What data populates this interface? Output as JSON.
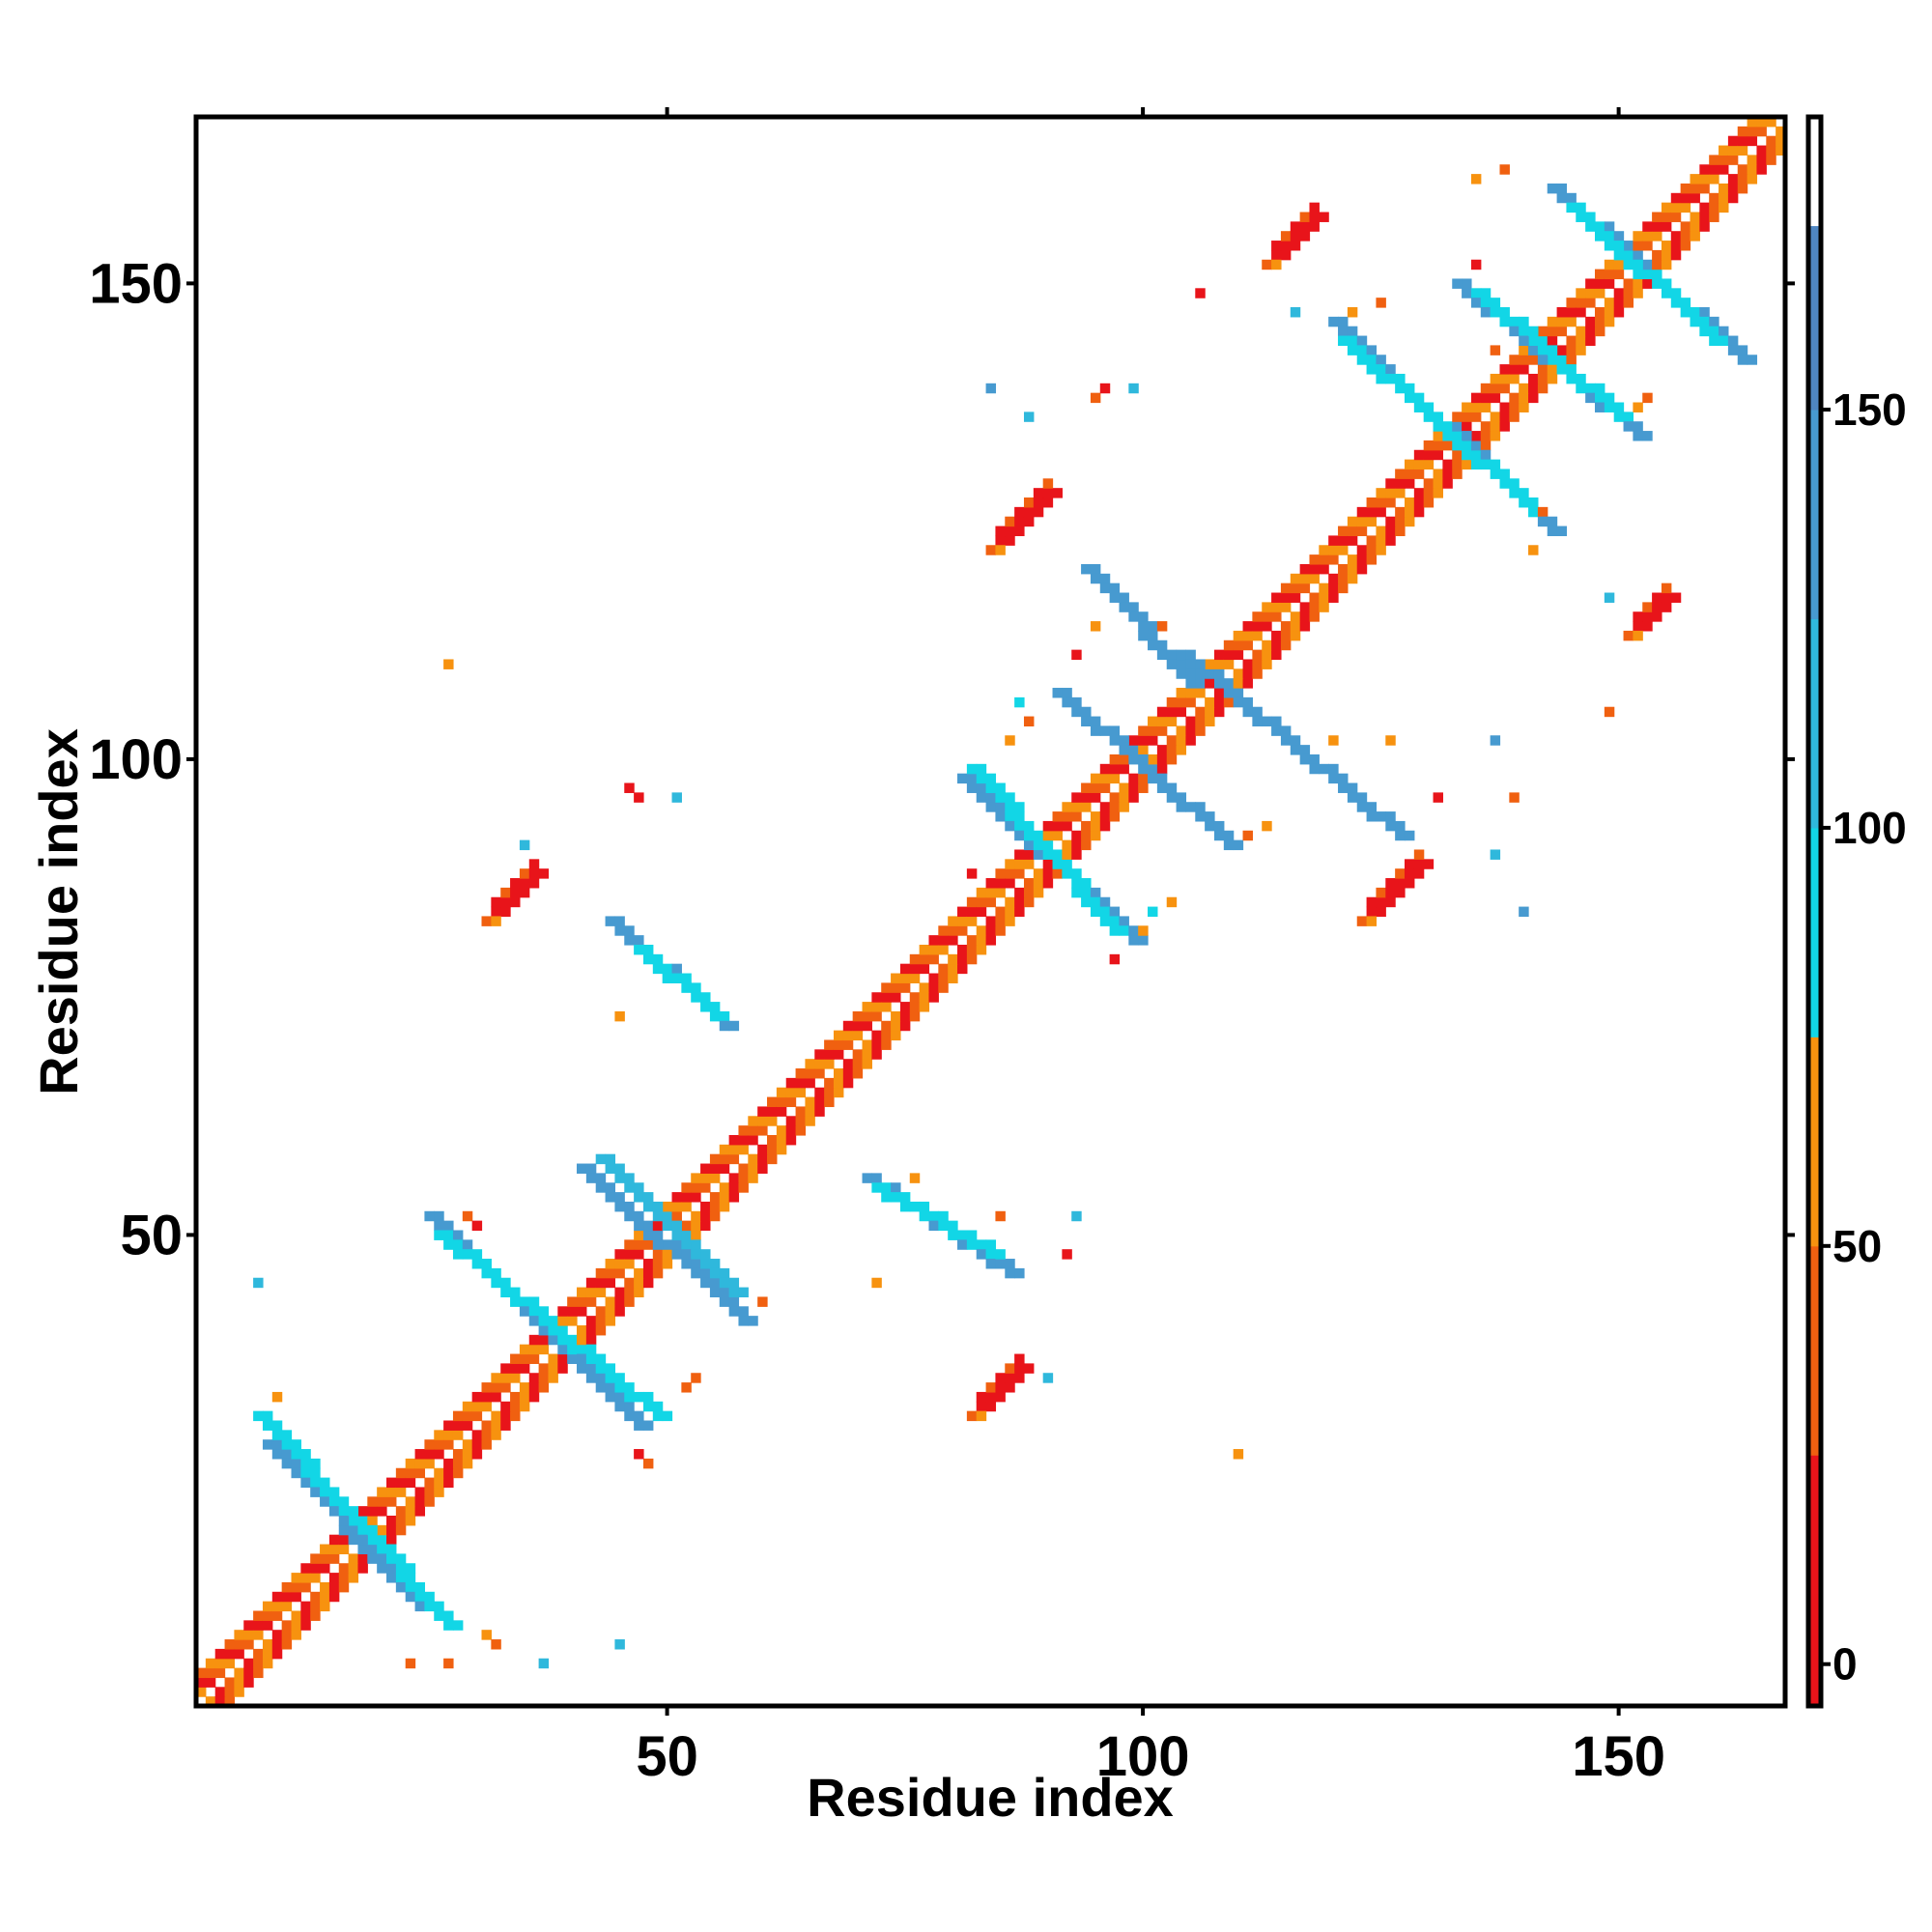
{
  "chart_data": {
    "type": "heatmap",
    "title": "",
    "xlabel": "Residue index",
    "ylabel": "Residue index",
    "xlim": [
      1,
      167
    ],
    "ylim": [
      1,
      167
    ],
    "x_ticks": [
      50,
      100,
      150
    ],
    "y_ticks": [
      50,
      100,
      150
    ],
    "grid": false,
    "legend": "colorbar-right",
    "colorbar": {
      "range": [
        -5,
        185
      ],
      "ticks": [
        0,
        50,
        100,
        150
      ],
      "bands": [
        {
          "from": -5,
          "to": 25,
          "color": "#e8141a"
        },
        {
          "from": 25,
          "to": 50,
          "color": "#f06010"
        },
        {
          "from": 50,
          "to": 75,
          "color": "#f7920f"
        },
        {
          "from": 75,
          "to": 100,
          "color": "#12d6e6"
        },
        {
          "from": 100,
          "to": 125,
          "color": "#2fb8dc"
        },
        {
          "from": 125,
          "to": 150,
          "color": "#479ad0"
        },
        {
          "from": 150,
          "to": 172,
          "color": "#4f86c2"
        },
        {
          "from": 172,
          "to": 185,
          "color": "#ffffff"
        }
      ]
    },
    "colors": {
      "red": "#e8141a",
      "orange_red": "#f06010",
      "orange": "#f7920f",
      "cyan": "#12d6e6",
      "light_blue": "#2fb8dc",
      "mid_blue": "#479ad0",
      "steel_blue": "#4f86c2"
    },
    "features": {
      "diagonal": {
        "from": 1,
        "to": 167
      },
      "cross_strands": [
        {
          "a": [
            8,
            28
          ],
          "b": [
            24,
            11
          ],
          "color": "mid_blue"
        },
        {
          "a": [
            7,
            31
          ],
          "b": [
            27,
            9
          ],
          "color": "cyan"
        },
        {
          "a": [
            25,
            52
          ],
          "b": [
            47,
            30
          ],
          "color": "mid_blue"
        },
        {
          "a": [
            26,
            50
          ],
          "b": [
            49,
            31
          ],
          "color": "cyan"
        },
        {
          "a": [
            41,
            57
          ],
          "b": [
            58,
            41
          ],
          "color": "mid_blue"
        },
        {
          "a": [
            43,
            58
          ],
          "b": [
            57,
            44
          ],
          "color": "light_blue"
        },
        {
          "a": [
            44,
            83
          ],
          "b": [
            56,
            72
          ],
          "color": "mid_blue"
        },
        {
          "a": [
            47,
            80
          ],
          "b": [
            55,
            73
          ],
          "color": "cyan"
        },
        {
          "a": [
            71,
            56
          ],
          "b": [
            86,
            46
          ],
          "color": "mid_blue"
        },
        {
          "a": [
            72,
            55
          ],
          "b": [
            84,
            48
          ],
          "color": "cyan"
        },
        {
          "a": [
            81,
            98
          ],
          "b": [
            99,
            81
          ],
          "color": "mid_blue"
        },
        {
          "a": [
            82,
            99
          ],
          "b": [
            97,
            82
          ],
          "color": "cyan"
        },
        {
          "a": [
            91,
            107
          ],
          "b": [
            109,
            91
          ],
          "color": "mid_blue"
        },
        {
          "a": [
            94,
            120
          ],
          "b": [
            105,
            108
          ],
          "color": "mid_blue"
        },
        {
          "a": [
            104,
            111
          ],
          "b": [
            127,
            92
          ],
          "color": "mid_blue"
        },
        {
          "a": [
            120,
            146
          ],
          "b": [
            143,
            124
          ],
          "color": "mid_blue"
        },
        {
          "a": [
            121,
            144
          ],
          "b": [
            141,
            126
          ],
          "color": "cyan"
        },
        {
          "a": [
            133,
            150
          ],
          "b": [
            152,
            134
          ],
          "color": "mid_blue"
        },
        {
          "a": [
            135,
            149
          ],
          "b": [
            150,
            136
          ],
          "color": "cyan"
        },
        {
          "a": [
            143,
            160
          ],
          "b": [
            163,
            142
          ],
          "color": "mid_blue"
        },
        {
          "a": [
            145,
            158
          ],
          "b": [
            160,
            144
          ],
          "color": "cyan"
        }
      ],
      "red_blobs": [
        {
          "x": 32,
          "y": 84,
          "len": 5,
          "dir": 1
        },
        {
          "x": 83,
          "y": 32,
          "len": 5,
          "dir": 1
        },
        {
          "x": 85,
          "y": 123,
          "len": 6,
          "dir": 1
        },
        {
          "x": 124,
          "y": 84,
          "len": 6,
          "dir": 1
        },
        {
          "x": 114,
          "y": 153,
          "len": 5,
          "dir": 1
        },
        {
          "x": 152,
          "y": 114,
          "len": 4,
          "dir": 1
        }
      ],
      "scattered": [
        [
          7,
          45,
          "light_blue"
        ],
        [
          9,
          33,
          "orange"
        ],
        [
          31,
          8,
          "orange"
        ],
        [
          32,
          7,
          "orange_red"
        ],
        [
          29,
          52,
          "orange_red"
        ],
        [
          30,
          51,
          "red"
        ],
        [
          45,
          7,
          "light_blue"
        ],
        [
          46,
          97,
          "red"
        ],
        [
          47,
          96,
          "red"
        ],
        [
          51,
          96,
          "light_blue"
        ],
        [
          35,
          91,
          "light_blue"
        ],
        [
          45,
          73,
          "orange"
        ],
        [
          52,
          34,
          "orange_red"
        ],
        [
          53,
          35,
          "orange_red"
        ],
        [
          48,
          26,
          "orange_red"
        ],
        [
          47,
          27,
          "red"
        ],
        [
          72,
          45,
          "orange"
        ],
        [
          85,
          52,
          "orange_red"
        ],
        [
          92,
          48,
          "red"
        ],
        [
          93,
          52,
          "light_blue"
        ],
        [
          90,
          35,
          "light_blue"
        ],
        [
          82,
          88,
          "red"
        ],
        [
          97,
          79,
          "red"
        ],
        [
          100,
          82,
          "orange"
        ],
        [
          101,
          84,
          "cyan"
        ],
        [
          103,
          85,
          "orange"
        ],
        [
          88,
          136,
          "light_blue"
        ],
        [
          84,
          139,
          "mid_blue"
        ],
        [
          95,
          138,
          "orange_red"
        ],
        [
          96,
          139,
          "red"
        ],
        [
          99,
          139,
          "light_blue"
        ],
        [
          102,
          114,
          "orange_red"
        ],
        [
          93,
          111,
          "red"
        ],
        [
          95,
          114,
          "orange"
        ],
        [
          88,
          104,
          "orange_red"
        ],
        [
          86,
          102,
          "orange"
        ],
        [
          87,
          106,
          "cyan"
        ],
        [
          111,
          92,
          "orange_red"
        ],
        [
          113,
          93,
          "orange"
        ],
        [
          120,
          102,
          "orange"
        ],
        [
          126,
          102,
          "orange"
        ],
        [
          131,
          96,
          "red"
        ],
        [
          139,
          96,
          "orange_red"
        ],
        [
          137,
          90,
          "light_blue"
        ],
        [
          140,
          84,
          "mid_blue"
        ],
        [
          137,
          102,
          "mid_blue"
        ],
        [
          149,
          105,
          "orange_red"
        ],
        [
          141,
          122,
          "orange"
        ],
        [
          142,
          126,
          "orange_red"
        ],
        [
          149,
          117,
          "light_blue"
        ],
        [
          125,
          148,
          "orange_red"
        ],
        [
          122,
          147,
          "orange"
        ],
        [
          106,
          149,
          "red"
        ],
        [
          116,
          147,
          "light_blue"
        ],
        [
          138,
          162,
          "orange_red"
        ],
        [
          135,
          161,
          "orange"
        ],
        [
          152,
          137,
          "orange"
        ],
        [
          153,
          138,
          "orange_red"
        ],
        [
          135,
          152,
          "red"
        ],
        [
          137,
          143,
          "orange_red"
        ],
        [
          23,
          5,
          "orange_red"
        ],
        [
          27,
          5,
          "orange_red"
        ],
        [
          37,
          5,
          "light_blue"
        ],
        [
          27,
          110,
          "orange"
        ],
        [
          110,
          27,
          "orange"
        ],
        [
          60,
          43,
          "orange_red"
        ],
        [
          76,
          56,
          "orange"
        ]
      ]
    }
  }
}
